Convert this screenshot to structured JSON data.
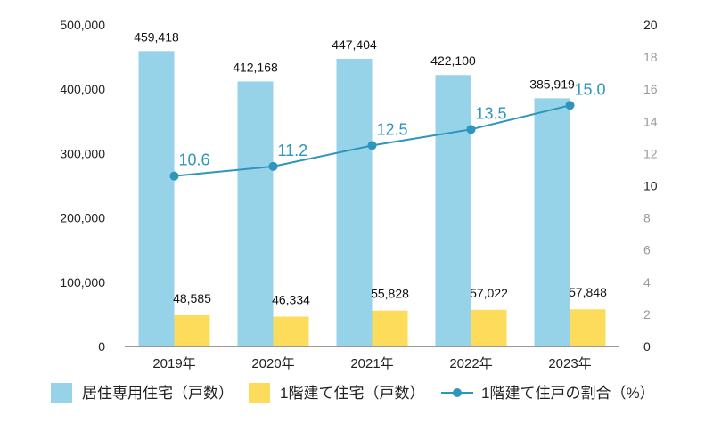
{
  "chart_data": {
    "type": "bar",
    "categories": [
      "2019年",
      "2020年",
      "2021年",
      "2022年",
      "2023年"
    ],
    "series": [
      {
        "name": "居住専用住宅（戸数）",
        "type": "bar",
        "axis": "left",
        "color": "#96d3e8",
        "values": [
          459418,
          412168,
          447404,
          422100,
          385919
        ],
        "labels": [
          "459,418",
          "412,168",
          "447,404",
          "422,100",
          "385,919"
        ]
      },
      {
        "name": "1階建て住宅（戸数）",
        "type": "bar",
        "axis": "left",
        "color": "#fcdc5a",
        "values": [
          48585,
          46334,
          55828,
          57022,
          57848
        ],
        "labels": [
          "48,585",
          "46,334",
          "55,828",
          "57,022",
          "57,848"
        ]
      },
      {
        "name": "1階建て住戸の割合（%）",
        "type": "line",
        "axis": "right",
        "color": "#2e95bd",
        "values": [
          10.6,
          11.2,
          12.5,
          13.5,
          15.0
        ],
        "labels": [
          "10.6",
          "11.2",
          "12.5",
          "13.5",
          "15.0"
        ]
      }
    ],
    "y_left": {
      "ylim": [
        0,
        500000
      ],
      "ticks": [
        "0",
        "100,000",
        "200,000",
        "300,000",
        "400,000",
        "500,000"
      ]
    },
    "y_right": {
      "ylim": [
        0,
        20
      ],
      "ticks": [
        "0",
        "2",
        "4",
        "6",
        "8",
        "10",
        "12",
        "14",
        "16",
        "18",
        "20"
      ]
    },
    "legend": "bottom",
    "grid": false
  }
}
